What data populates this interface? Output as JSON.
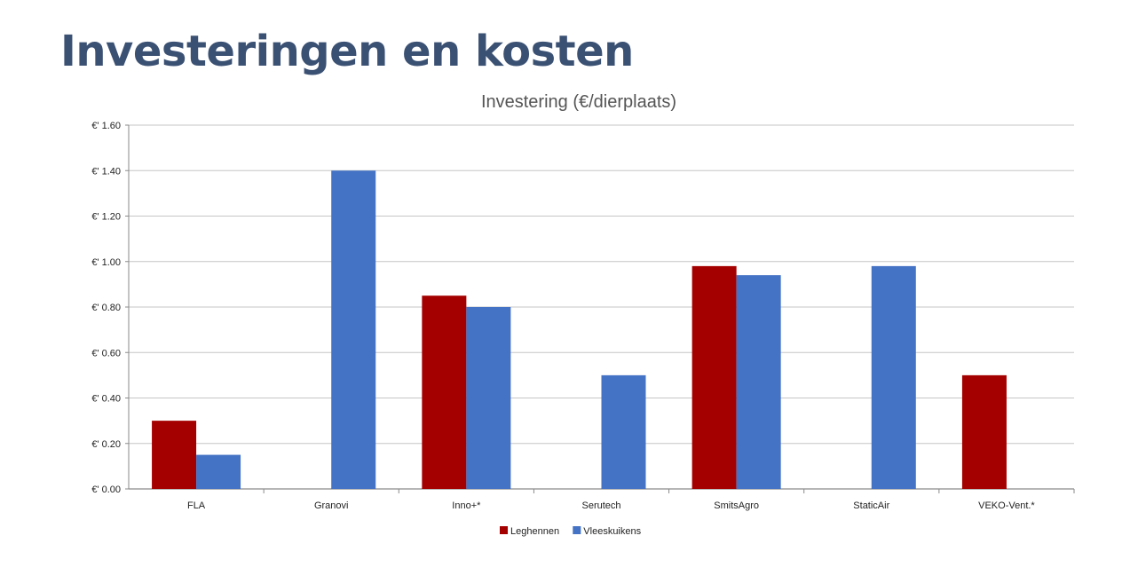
{
  "slide": {
    "title": "Investeringen en kosten"
  },
  "chart_data": {
    "type": "bar",
    "title": "Investering (€/dierplaats)",
    "xlabel": "",
    "ylabel": "",
    "categories": [
      "FLA",
      "Granovi",
      "Inno+*",
      "Serutech",
      "SmitsAgro",
      "StaticAir",
      "VEKO-Vent.*"
    ],
    "series": [
      {
        "name": "Leghennen",
        "color": "#a50000",
        "values": [
          0.3,
          null,
          0.85,
          null,
          0.98,
          null,
          0.5
        ]
      },
      {
        "name": "Vleeskuikens",
        "color": "#4472c4",
        "values": [
          0.15,
          1.4,
          0.8,
          0.5,
          0.94,
          0.98,
          null
        ]
      }
    ],
    "ylim": [
      0,
      1.6
    ],
    "yticks": [
      0,
      0.2,
      0.4,
      0.6,
      0.8,
      1.0,
      1.2,
      1.4,
      1.6
    ],
    "ytick_labels": [
      "€' 0.00",
      "€' 0.20",
      "€' 0.40",
      "€' 0.60",
      "€' 0.80",
      "€' 1.00",
      "€' 1.20",
      "€' 1.40",
      "€' 1.60"
    ],
    "grid": true,
    "legend_position": "bottom"
  }
}
